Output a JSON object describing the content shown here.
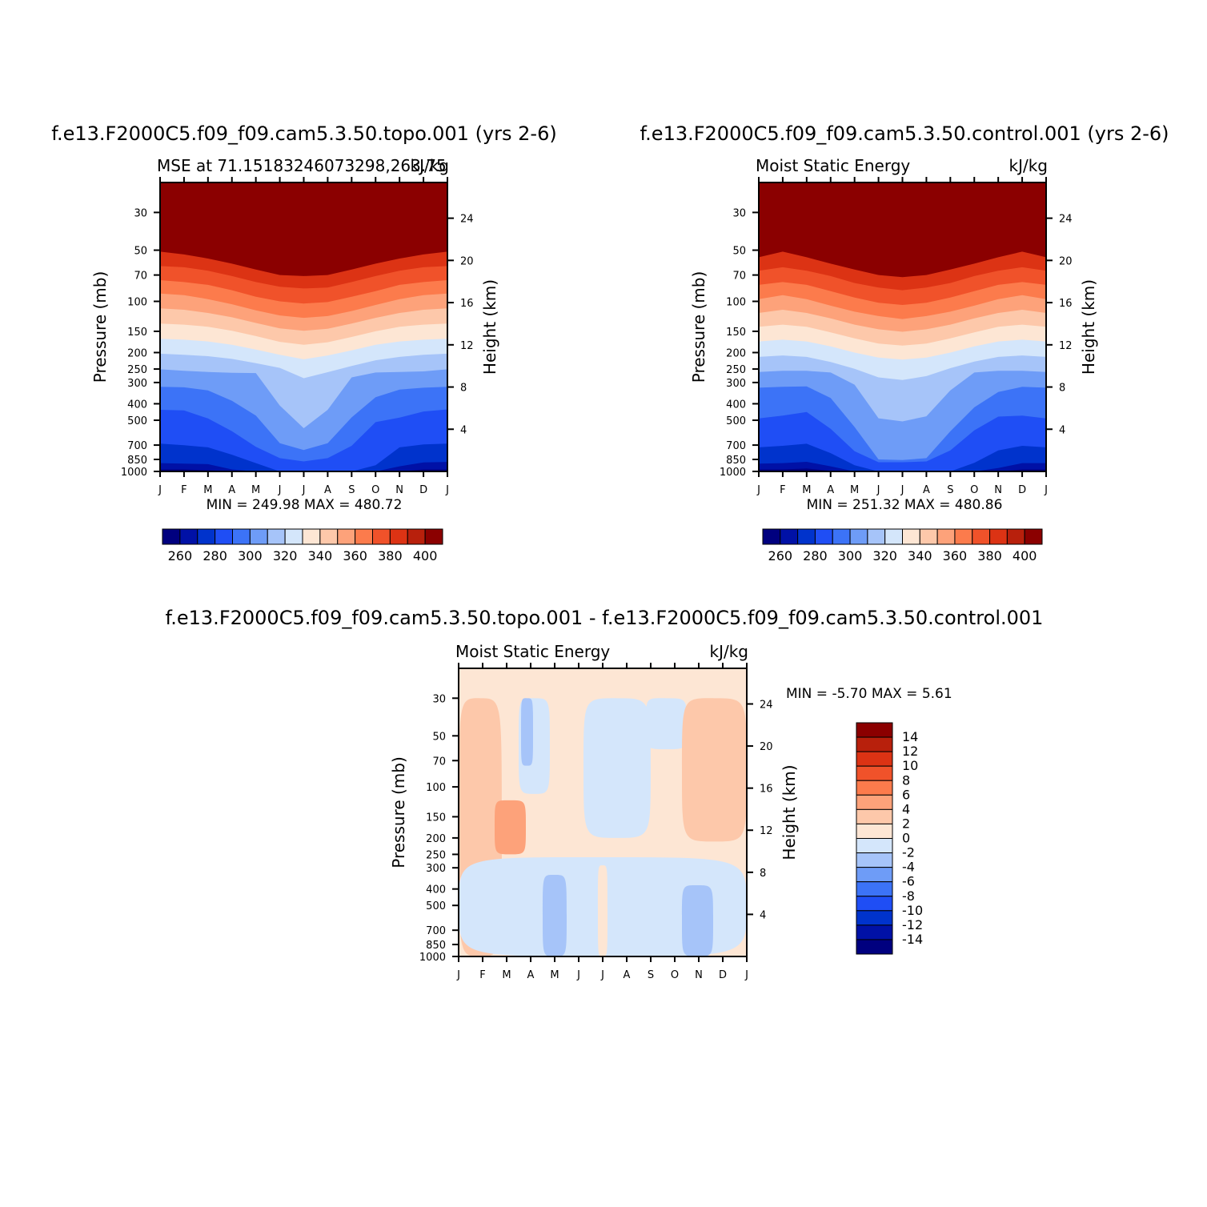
{
  "figure": {
    "pressure_ticks": [
      "30",
      "50",
      "70",
      "100",
      "150",
      "200",
      "250",
      "300",
      "400",
      "500",
      "700",
      "850",
      "1000"
    ],
    "pressure_values": [
      30,
      50,
      70,
      100,
      150,
      200,
      250,
      300,
      400,
      500,
      700,
      850,
      1000
    ],
    "height_ticks": [
      "4",
      "8",
      "12",
      "16",
      "20",
      "24"
    ],
    "height_values": [
      4,
      8,
      12,
      16,
      20,
      24
    ],
    "month_ticks": [
      "J",
      "F",
      "M",
      "A",
      "M",
      "J",
      "J",
      "A",
      "S",
      "O",
      "N",
      "D",
      "J"
    ]
  },
  "panels": [
    {
      "id": "topo",
      "case_title": "f.e13.F2000C5.f09_f09.cam5.3.50.topo.001 (yrs 2-6)",
      "left_title": "MSE at 71.15183246073298,263.75",
      "right_title": "kJ/kg",
      "ylabel": "Pressure (mb)",
      "ylabel_right": "Height (km)",
      "stats": "MIN = 249.98 MAX = 480.72",
      "colorbar_labels": [
        "260",
        "280",
        "300",
        "320",
        "340",
        "360",
        "380",
        "400"
      ]
    },
    {
      "id": "control",
      "case_title": "f.e13.F2000C5.f09_f09.cam5.3.50.control.001 (yrs 2-6)",
      "left_title": "Moist Static Energy",
      "right_title": "kJ/kg",
      "ylabel": "Pressure (mb)",
      "ylabel_right": "Height (km)",
      "stats": "MIN = 251.32 MAX = 480.86",
      "colorbar_labels": [
        "260",
        "280",
        "300",
        "320",
        "340",
        "360",
        "380",
        "400"
      ]
    },
    {
      "id": "diff",
      "case_title": "f.e13.F2000C5.f09_f09.cam5.3.50.topo.001 - f.e13.F2000C5.f09_f09.cam5.3.50.control.001",
      "left_title": "Moist Static Energy",
      "right_title": "kJ/kg",
      "ylabel": "Pressure (mb)",
      "ylabel_right": "Height (km)",
      "stats": "MIN = -5.70 MAX = 5.61",
      "colorbar_labels": [
        "14",
        "12",
        "10",
        "8",
        "6",
        "4",
        "2",
        "0",
        "-2",
        "-4",
        "-6",
        "-8",
        "-10",
        "-12",
        "-14"
      ]
    }
  ],
  "chart_data": [
    {
      "type": "heatmap",
      "title": "MSE at 71.15183246073298,263.75",
      "units": "kJ/kg",
      "xlabel": "",
      "ylabel": "Pressure (mb)",
      "ylabel_right": "Height (km)",
      "x": [
        "J",
        "F",
        "M",
        "A",
        "M",
        "J",
        "J",
        "A",
        "S",
        "O",
        "N",
        "D",
        "J"
      ],
      "contour_levels": [
        250,
        260,
        270,
        280,
        290,
        300,
        310,
        320,
        330,
        340,
        350,
        360,
        370,
        380,
        390,
        400,
        410
      ],
      "colors": [
        "#00007f",
        "#0011a6",
        "#0033cc",
        "#1f4ef5",
        "#3c73f7",
        "#6e9cf7",
        "#a6c4f9",
        "#d4e6fb",
        "#fde6d4",
        "#fdc8aa",
        "#fda27a",
        "#fc7b4c",
        "#f0522a",
        "#dc3314",
        "#b8200c",
        "#8b0000"
      ],
      "min": 249.98,
      "max": 480.72,
      "contour_pressure_mb": [
        [
          1000,
          1000,
          1000,
          1000,
          1000,
          1000,
          1000,
          1000,
          1000,
          1000,
          1000,
          1000,
          1000
        ],
        [
          973,
          973,
          984,
          1000,
          1000,
          1000,
          1000,
          1000,
          1000,
          1000,
          1000,
          973,
          973
        ],
        [
          893,
          899,
          906,
          973,
          1000,
          1000,
          1000,
          1000,
          1000,
          1000,
          933,
          886,
          879
        ],
        [
          686,
          701,
          722,
          797,
          893,
          1000,
          1000,
          1000,
          1000,
          920,
          722,
          694,
          686
        ],
        [
          434,
          438,
          488,
          580,
          717,
          835,
          873,
          835,
          707,
          513,
          482,
          444,
          432
        ],
        [
          318,
          320,
          334,
          384,
          470,
          682,
          748,
          682,
          481,
          366,
          330,
          322,
          318
        ],
        [
          251,
          256,
          260,
          263,
          264,
          410,
          557,
          434,
          280,
          262,
          260,
          258,
          251
        ],
        [
          203,
          206,
          210,
          218,
          231,
          246,
          283,
          261,
          240,
          222,
          212,
          206,
          203
        ],
        [
          166,
          168,
          172,
          180,
          192,
          206,
          219,
          208,
          194,
          180,
          172,
          168,
          166
        ],
        [
          135,
          137,
          141,
          149,
          160,
          173,
          180,
          174,
          162,
          150,
          141,
          137,
          135
        ],
        [
          110,
          112,
          117,
          124,
          134,
          144,
          149,
          145,
          135,
          125,
          117,
          112,
          110
        ],
        [
          90,
          92,
          97,
          104,
          113,
          121,
          125,
          122,
          114,
          105,
          97,
          92,
          90
        ],
        [
          75,
          77,
          80,
          86,
          94,
          100,
          103,
          101,
          94,
          87,
          80,
          77,
          75
        ],
        [
          62,
          63,
          66,
          71,
          77,
          82,
          84,
          83,
          77,
          71,
          66,
          63,
          62
        ],
        [
          51,
          53,
          56,
          60,
          65,
          70,
          71,
          70,
          65,
          60,
          56,
          53,
          51
        ]
      ]
    },
    {
      "type": "heatmap",
      "title": "Moist Static Energy",
      "units": "kJ/kg",
      "xlabel": "",
      "ylabel": "Pressure (mb)",
      "ylabel_right": "Height (km)",
      "x": [
        "J",
        "F",
        "M",
        "A",
        "M",
        "J",
        "J",
        "A",
        "S",
        "O",
        "N",
        "D",
        "J"
      ],
      "contour_levels": [
        250,
        260,
        270,
        280,
        290,
        300,
        310,
        320,
        330,
        340,
        350,
        360,
        370,
        380,
        390,
        400,
        410
      ],
      "colors": [
        "#00007f",
        "#0011a6",
        "#0033cc",
        "#1f4ef5",
        "#3c73f7",
        "#6e9cf7",
        "#a6c4f9",
        "#d4e6fb",
        "#fde6d4",
        "#fdc8aa",
        "#fda27a",
        "#fc7b4c",
        "#f0522a",
        "#dc3314",
        "#b8200c",
        "#8b0000"
      ],
      "min": 251.32,
      "max": 480.86,
      "contour_pressure_mb": [
        [
          1000,
          1000,
          1000,
          1000,
          1000,
          1000,
          1000,
          1000,
          1000,
          1000,
          1000,
          1000,
          1000
        ],
        [
          973,
          973,
          962,
          990,
          1000,
          1000,
          1000,
          1000,
          1000,
          1000,
          1000,
          973,
          973
        ],
        [
          900,
          893,
          878,
          933,
          1000,
          1000,
          1000,
          1000,
          1000,
          1000,
          955,
          893,
          893
        ],
        [
          722,
          707,
          687,
          780,
          920,
          1000,
          1000,
          1000,
          1000,
          890,
          752,
          707,
          722
        ],
        [
          488,
          470,
          447,
          561,
          760,
          883,
          883,
          873,
          752,
          573,
          476,
          470,
          488
        ],
        [
          322,
          318,
          316,
          370,
          548,
          850,
          857,
          835,
          581,
          420,
          341,
          318,
          322
        ],
        [
          260,
          256,
          256,
          262,
          309,
          487,
          508,
          474,
          334,
          262,
          256,
          256,
          260
        ],
        [
          212,
          208,
          212,
          227,
          249,
          280,
          290,
          275,
          247,
          226,
          212,
          208,
          212
        ],
        [
          172,
          168,
          172,
          184,
          200,
          214,
          220,
          214,
          200,
          184,
          172,
          168,
          172
        ],
        [
          141,
          137,
          141,
          152,
          165,
          177,
          182,
          177,
          165,
          152,
          141,
          137,
          141
        ],
        [
          117,
          112,
          117,
          126,
          137,
          146,
          151,
          146,
          137,
          126,
          117,
          112,
          117
        ],
        [
          97,
          92,
          97,
          106,
          115,
          122,
          127,
          122,
          115,
          106,
          97,
          92,
          97
        ],
        [
          80,
          77,
          80,
          87,
          95,
          102,
          105,
          102,
          95,
          87,
          80,
          77,
          80
        ],
        [
          66,
          63,
          66,
          71,
          78,
          83,
          86,
          83,
          78,
          71,
          66,
          63,
          66
        ],
        [
          55,
          51,
          55,
          60,
          65,
          70,
          72,
          70,
          65,
          60,
          55,
          51,
          55
        ]
      ]
    },
    {
      "type": "heatmap",
      "title": "Moist Static Energy",
      "units": "kJ/kg",
      "xlabel": "",
      "ylabel": "Pressure (mb)",
      "ylabel_right": "Height (km)",
      "x": [
        "J",
        "F",
        "M",
        "A",
        "M",
        "J",
        "J",
        "A",
        "S",
        "O",
        "N",
        "D",
        "J"
      ],
      "contour_levels": [
        -16,
        -14,
        -12,
        -10,
        -8,
        -6,
        -4,
        -2,
        0,
        2,
        4,
        6,
        8,
        10,
        12,
        14,
        16
      ],
      "colors": [
        "#00007f",
        "#0011a6",
        "#0033cc",
        "#1f4ef5",
        "#3c73f7",
        "#6e9cf7",
        "#a6c4f9",
        "#d4e6fb",
        "#fde6d4",
        "#fdc8aa",
        "#fda27a",
        "#fc7b4c",
        "#f0522a",
        "#dc3314",
        "#b8200c",
        "#8b0000"
      ],
      "min": -5.7,
      "max": 5.61,
      "background_level": "0 to 2",
      "regions": [
        {
          "level": "2 to 4",
          "months": [
            0,
            1.8
          ],
          "pressure_mb": [
            1000,
            30
          ],
          "note": "Jan-Feb positive column above and below"
        },
        {
          "level": "4 to 6",
          "months": [
            1.5,
            2.8
          ],
          "pressure_mb": [
            250,
            120
          ],
          "note": "Feb-Mar upper-troposphere maximum"
        },
        {
          "level": "-2 to 0",
          "months": [
            0,
            12
          ],
          "pressure_mb": [
            1000,
            260
          ],
          "note": "broad negative lower-troposphere layer"
        },
        {
          "level": "-4 to -2",
          "months": [
            3.5,
            4.5
          ],
          "pressure_mb": [
            1000,
            330
          ],
          "note": "Apr-May lower negative"
        },
        {
          "level": "-4 to -2",
          "months": [
            9.3,
            10.6
          ],
          "pressure_mb": [
            1000,
            380
          ],
          "note": "Oct-Nov lower negative"
        },
        {
          "level": "-2 to 0",
          "months": [
            2.5,
            3.8
          ],
          "pressure_mb": [
            110,
            30
          ],
          "note": "Mar-Apr stratosphere negative"
        },
        {
          "level": "-4 to -2",
          "months": [
            2.6,
            3.1
          ],
          "pressure_mb": [
            75,
            30
          ],
          "note": "Mar-Apr stratosphere negative core"
        },
        {
          "level": "-2 to 0",
          "months": [
            5.2,
            8.0
          ],
          "pressure_mb": [
            200,
            30
          ],
          "note": "Jun-Aug stratosphere negative"
        },
        {
          "level": "-2 to 0",
          "months": [
            7.8,
            9.5
          ],
          "pressure_mb": [
            60,
            30
          ],
          "note": "Sep-Oct stratosphere negative"
        },
        {
          "level": "2 to 4",
          "months": [
            9.3,
            12
          ],
          "pressure_mb": [
            210,
            30
          ],
          "note": "Nov-Dec positive"
        },
        {
          "level": "0 to 2",
          "months": [
            5.8,
            6.2
          ],
          "pressure_mb": [
            1000,
            290
          ],
          "note": "July positive sliver"
        }
      ]
    }
  ]
}
